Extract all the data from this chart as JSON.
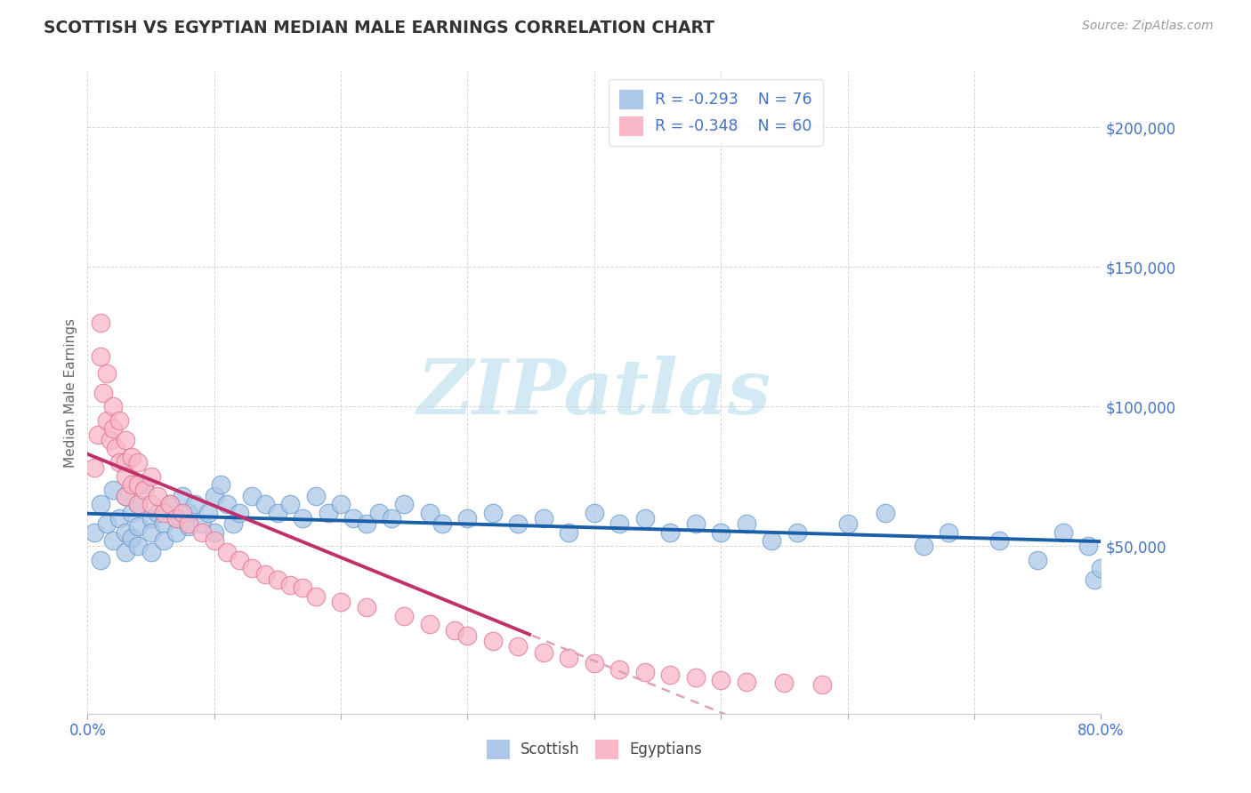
{
  "title": "SCOTTISH VS EGYPTIAN MEDIAN MALE EARNINGS CORRELATION CHART",
  "source_text": "Source: ZipAtlas.com",
  "ylabel": "Median Male Earnings",
  "x_min": 0.0,
  "x_max": 0.8,
  "y_min": -10000,
  "y_max": 220000,
  "yticks": [
    50000,
    100000,
    150000,
    200000
  ],
  "ytick_labels": [
    "$50,000",
    "$100,000",
    "$150,000",
    "$200,000"
  ],
  "xticks": [
    0.0,
    0.1,
    0.2,
    0.3,
    0.4,
    0.5,
    0.6,
    0.7,
    0.8
  ],
  "scottish_color": "#adc8e8",
  "scottish_edge": "#6699cc",
  "egyptian_color": "#f9b8c8",
  "egyptian_edge": "#e07090",
  "trend_scottish_color": "#1a5fa8",
  "trend_egyptian_color": "#c0306a",
  "trend_egyptian_dash_color": "#e0a0b8",
  "R_scottish": -0.293,
  "N_scottish": 76,
  "R_egyptian": -0.348,
  "N_egyptian": 60,
  "background_color": "#ffffff",
  "grid_color": "#cccccc",
  "title_color": "#333333",
  "axis_label_color": "#666666",
  "tick_color": "#4472c4",
  "watermark_text": "ZIPatlas",
  "watermark_color": "#d3eaf5",
  "scottish_x": [
    0.005,
    0.01,
    0.01,
    0.015,
    0.02,
    0.02,
    0.025,
    0.03,
    0.03,
    0.03,
    0.035,
    0.035,
    0.04,
    0.04,
    0.04,
    0.045,
    0.05,
    0.05,
    0.05,
    0.055,
    0.06,
    0.06,
    0.065,
    0.07,
    0.07,
    0.075,
    0.08,
    0.08,
    0.085,
    0.09,
    0.095,
    0.1,
    0.1,
    0.105,
    0.11,
    0.115,
    0.12,
    0.13,
    0.14,
    0.15,
    0.16,
    0.17,
    0.18,
    0.19,
    0.2,
    0.21,
    0.22,
    0.23,
    0.24,
    0.25,
    0.27,
    0.28,
    0.3,
    0.32,
    0.34,
    0.36,
    0.38,
    0.4,
    0.42,
    0.44,
    0.46,
    0.48,
    0.5,
    0.52,
    0.54,
    0.56,
    0.6,
    0.63,
    0.66,
    0.68,
    0.72,
    0.75,
    0.77,
    0.79,
    0.795,
    0.8
  ],
  "scottish_y": [
    55000,
    65000,
    45000,
    58000,
    70000,
    52000,
    60000,
    68000,
    55000,
    48000,
    62000,
    53000,
    65000,
    57000,
    50000,
    72000,
    60000,
    55000,
    48000,
    62000,
    58000,
    52000,
    65000,
    60000,
    55000,
    68000,
    62000,
    57000,
    65000,
    58000,
    62000,
    68000,
    55000,
    72000,
    65000,
    58000,
    62000,
    68000,
    65000,
    62000,
    65000,
    60000,
    68000,
    62000,
    65000,
    60000,
    58000,
    62000,
    60000,
    65000,
    62000,
    58000,
    60000,
    62000,
    58000,
    60000,
    55000,
    62000,
    58000,
    60000,
    55000,
    58000,
    55000,
    58000,
    52000,
    55000,
    58000,
    62000,
    50000,
    55000,
    52000,
    45000,
    55000,
    50000,
    38000,
    42000
  ],
  "egyptian_x": [
    0.005,
    0.008,
    0.01,
    0.01,
    0.012,
    0.015,
    0.015,
    0.018,
    0.02,
    0.02,
    0.022,
    0.025,
    0.025,
    0.03,
    0.03,
    0.03,
    0.03,
    0.035,
    0.035,
    0.04,
    0.04,
    0.04,
    0.045,
    0.05,
    0.05,
    0.055,
    0.06,
    0.065,
    0.07,
    0.075,
    0.08,
    0.09,
    0.1,
    0.11,
    0.12,
    0.13,
    0.14,
    0.15,
    0.16,
    0.17,
    0.18,
    0.2,
    0.22,
    0.25,
    0.27,
    0.29,
    0.3,
    0.32,
    0.34,
    0.36,
    0.38,
    0.4,
    0.42,
    0.44,
    0.46,
    0.48,
    0.5,
    0.52,
    0.55,
    0.58
  ],
  "egyptian_y": [
    78000,
    90000,
    130000,
    118000,
    105000,
    112000,
    95000,
    88000,
    100000,
    92000,
    85000,
    95000,
    80000,
    88000,
    80000,
    75000,
    68000,
    82000,
    72000,
    80000,
    72000,
    65000,
    70000,
    75000,
    65000,
    68000,
    62000,
    65000,
    60000,
    62000,
    58000,
    55000,
    52000,
    48000,
    45000,
    42000,
    40000,
    38000,
    36000,
    35000,
    32000,
    30000,
    28000,
    25000,
    22000,
    20000,
    18000,
    16000,
    14000,
    12000,
    10000,
    8000,
    6000,
    5000,
    4000,
    3000,
    2000,
    1500,
    1000,
    500
  ]
}
